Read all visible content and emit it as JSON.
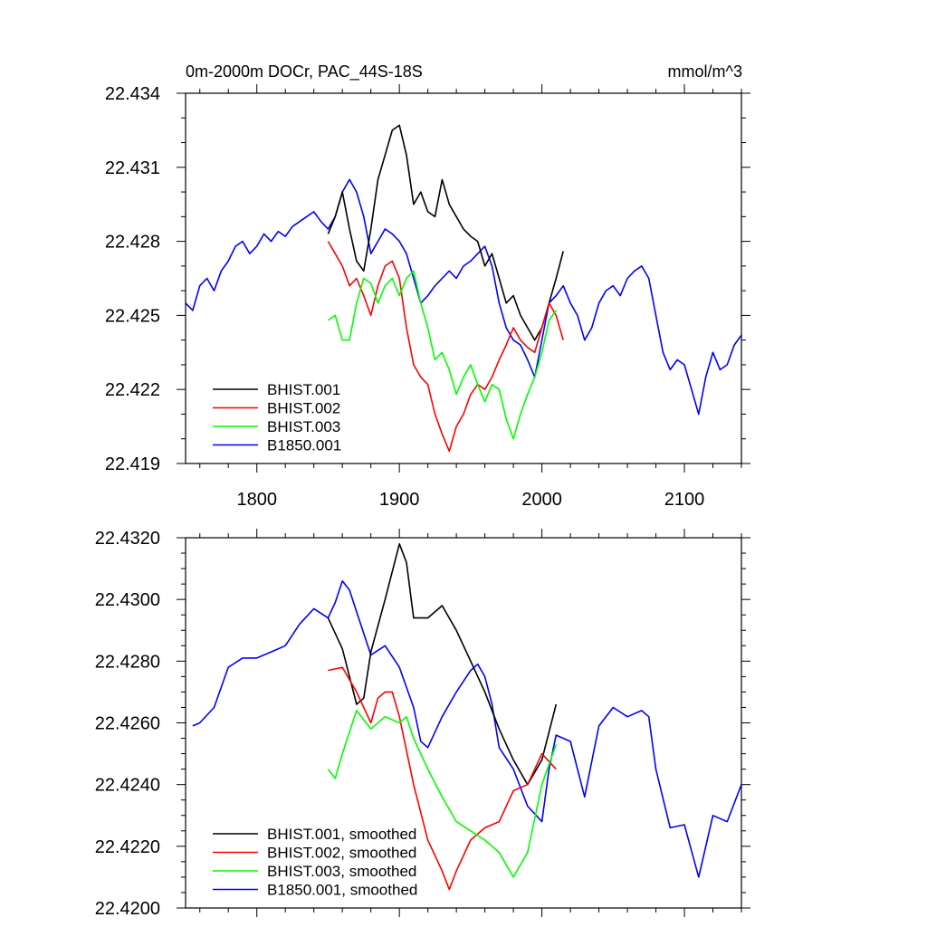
{
  "chart_data": [
    {
      "type": "line",
      "title": "0m-2000m DOCr, PAC_44S-18S",
      "units": "mmol/m^3",
      "xlim": [
        1750,
        2140
      ],
      "ylim": [
        22.419,
        22.434
      ],
      "x_ticks": [
        {
          "value": 1800,
          "label": "1800"
        },
        {
          "value": 1900,
          "label": "1900"
        },
        {
          "value": 2000,
          "label": "2000"
        },
        {
          "value": 2100,
          "label": "2100"
        }
      ],
      "y_ticks": [
        {
          "value": 22.419,
          "label": "22.419"
        },
        {
          "value": 22.422,
          "label": "22.422"
        },
        {
          "value": 22.425,
          "label": "22.425"
        },
        {
          "value": 22.428,
          "label": "22.428"
        },
        {
          "value": 22.431,
          "label": "22.431"
        },
        {
          "value": 22.434,
          "label": "22.434"
        }
      ],
      "legend_position": "bottom-left",
      "series": [
        {
          "name": "BHIST.001",
          "color": "#000000",
          "x": [
            1850,
            1855,
            1860,
            1865,
            1870,
            1875,
            1880,
            1885,
            1890,
            1895,
            1900,
            1905,
            1910,
            1915,
            1920,
            1925,
            1930,
            1935,
            1940,
            1945,
            1950,
            1955,
            1960,
            1965,
            1970,
            1975,
            1980,
            1985,
            1990,
            1995,
            2000,
            2005,
            2010,
            2015
          ],
          "y": [
            22.4283,
            22.429,
            22.43,
            22.4285,
            22.4272,
            22.4268,
            22.4285,
            22.4305,
            22.4315,
            22.4325,
            22.4327,
            22.4315,
            22.4295,
            22.43,
            22.4292,
            22.429,
            22.4305,
            22.4295,
            22.429,
            22.4285,
            22.4282,
            22.428,
            22.427,
            22.4275,
            22.4265,
            22.4255,
            22.4258,
            22.425,
            22.4245,
            22.424,
            22.4245,
            22.4255,
            22.4265,
            22.4276
          ]
        },
        {
          "name": "BHIST.002",
          "color": "#ff0000",
          "x": [
            1850,
            1855,
            1860,
            1865,
            1870,
            1875,
            1880,
            1885,
            1890,
            1895,
            1900,
            1905,
            1910,
            1915,
            1920,
            1925,
            1930,
            1935,
            1940,
            1945,
            1950,
            1955,
            1960,
            1965,
            1970,
            1975,
            1980,
            1985,
            1990,
            1995,
            2000,
            2005,
            2010,
            2015
          ],
          "y": [
            22.428,
            22.4275,
            22.427,
            22.4262,
            22.4265,
            22.4258,
            22.425,
            22.4262,
            22.427,
            22.4272,
            22.4265,
            22.4245,
            22.423,
            22.4225,
            22.4222,
            22.421,
            22.4202,
            22.4195,
            22.4205,
            22.421,
            22.4218,
            22.4222,
            22.422,
            22.4225,
            22.4232,
            22.4238,
            22.4245,
            22.424,
            22.4237,
            22.4235,
            22.4245,
            22.4255,
            22.425,
            22.424
          ]
        },
        {
          "name": "BHIST.003",
          "color": "#00ff00",
          "x": [
            1850,
            1855,
            1860,
            1865,
            1870,
            1875,
            1880,
            1885,
            1890,
            1895,
            1900,
            1905,
            1910,
            1915,
            1920,
            1925,
            1930,
            1935,
            1940,
            1945,
            1950,
            1955,
            1960,
            1965,
            1970,
            1975,
            1980,
            1985,
            1990,
            1995,
            2000,
            2005,
            2010
          ],
          "y": [
            22.4248,
            22.425,
            22.424,
            22.424,
            22.4255,
            22.4265,
            22.4263,
            22.4255,
            22.4262,
            22.4265,
            22.4258,
            22.4265,
            22.4268,
            22.4255,
            22.4245,
            22.4232,
            22.4235,
            22.4228,
            22.4218,
            22.4225,
            22.423,
            22.4222,
            22.4215,
            22.4222,
            22.422,
            22.4208,
            22.42,
            22.421,
            22.4218,
            22.4225,
            22.4235,
            22.4248,
            22.4252
          ]
        },
        {
          "name": "B1850.001",
          "color": "#0000ff",
          "x": [
            1750,
            1755,
            1760,
            1765,
            1770,
            1775,
            1780,
            1785,
            1790,
            1795,
            1800,
            1805,
            1810,
            1815,
            1820,
            1825,
            1830,
            1835,
            1840,
            1845,
            1850,
            1855,
            1860,
            1865,
            1870,
            1875,
            1880,
            1885,
            1890,
            1895,
            1900,
            1905,
            1910,
            1915,
            1920,
            1925,
            1930,
            1935,
            1940,
            1945,
            1950,
            1955,
            1960,
            1965,
            1970,
            1975,
            1980,
            1985,
            1990,
            1995,
            2000,
            2005,
            2010,
            2015,
            2020,
            2025,
            2030,
            2035,
            2040,
            2045,
            2050,
            2055,
            2060,
            2065,
            2070,
            2075,
            2080,
            2085,
            2090,
            2095,
            2100,
            2105,
            2110,
            2115,
            2120,
            2125,
            2130,
            2135,
            2140
          ],
          "y": [
            22.4255,
            22.4252,
            22.4262,
            22.4265,
            22.426,
            22.4268,
            22.4272,
            22.4278,
            22.428,
            22.4275,
            22.4278,
            22.4283,
            22.428,
            22.4284,
            22.4282,
            22.4286,
            22.4288,
            22.429,
            22.4292,
            22.4288,
            22.4285,
            22.429,
            22.43,
            22.4305,
            22.43,
            22.429,
            22.4275,
            22.428,
            22.4285,
            22.4283,
            22.428,
            22.4275,
            22.4265,
            22.4255,
            22.4258,
            22.4262,
            22.4265,
            22.4268,
            22.4265,
            22.427,
            22.4272,
            22.4275,
            22.4278,
            22.427,
            22.4255,
            22.4245,
            22.424,
            22.4238,
            22.4232,
            22.4225,
            22.424,
            22.4255,
            22.4258,
            22.4262,
            22.4255,
            22.425,
            22.424,
            22.4245,
            22.4255,
            22.426,
            22.4262,
            22.4258,
            22.4265,
            22.4268,
            22.427,
            22.4265,
            22.425,
            22.4235,
            22.4228,
            22.4232,
            22.423,
            22.422,
            22.421,
            22.4225,
            22.4235,
            22.4228,
            22.423,
            22.4238,
            22.4242
          ]
        }
      ]
    },
    {
      "type": "line",
      "xlim": [
        1750,
        2140
      ],
      "ylim": [
        22.42,
        22.432
      ],
      "x_ticks": [
        {
          "value": 1800,
          "label": ""
        },
        {
          "value": 1900,
          "label": ""
        },
        {
          "value": 2000,
          "label": ""
        },
        {
          "value": 2100,
          "label": ""
        }
      ],
      "y_ticks": [
        {
          "value": 22.42,
          "label": "22.4200"
        },
        {
          "value": 22.422,
          "label": "22.4220"
        },
        {
          "value": 22.424,
          "label": "22.4240"
        },
        {
          "value": 22.426,
          "label": "22.4260"
        },
        {
          "value": 22.428,
          "label": "22.4280"
        },
        {
          "value": 22.43,
          "label": "22.4300"
        },
        {
          "value": 22.432,
          "label": "22.4320"
        }
      ],
      "legend_position": "bottom-left",
      "series": [
        {
          "name": "BHIST.001, smoothed",
          "color": "#000000",
          "x": [
            1850,
            1860,
            1870,
            1875,
            1880,
            1890,
            1900,
            1905,
            1910,
            1920,
            1930,
            1940,
            1950,
            1960,
            1970,
            1980,
            1990,
            2000,
            2010
          ],
          "y": [
            22.4294,
            22.4284,
            22.4266,
            22.4268,
            22.4283,
            22.43,
            22.4318,
            22.4312,
            22.4294,
            22.4294,
            22.4298,
            22.429,
            22.428,
            22.427,
            22.4258,
            22.4248,
            22.424,
            22.4248,
            22.4266
          ]
        },
        {
          "name": "BHIST.002, smoothed",
          "color": "#ff0000",
          "x": [
            1850,
            1860,
            1870,
            1880,
            1885,
            1890,
            1895,
            1900,
            1910,
            1920,
            1930,
            1935,
            1940,
            1950,
            1960,
            1970,
            1980,
            1990,
            2000,
            2010
          ],
          "y": [
            22.4277,
            22.4278,
            22.427,
            22.426,
            22.4268,
            22.427,
            22.427,
            22.4262,
            22.424,
            22.4222,
            22.4212,
            22.4206,
            22.4212,
            22.4222,
            22.4226,
            22.4228,
            22.4238,
            22.424,
            22.425,
            22.4245
          ]
        },
        {
          "name": "BHIST.003, smoothed",
          "color": "#00ff00",
          "x": [
            1850,
            1855,
            1860,
            1870,
            1880,
            1890,
            1900,
            1905,
            1910,
            1920,
            1930,
            1940,
            1950,
            1960,
            1970,
            1980,
            1990,
            2000,
            2010
          ],
          "y": [
            22.4245,
            22.4242,
            22.425,
            22.4264,
            22.4258,
            22.4262,
            22.426,
            22.4262,
            22.4255,
            22.4245,
            22.4236,
            22.4228,
            22.4225,
            22.4222,
            22.4218,
            22.421,
            22.4218,
            22.424,
            22.4253
          ]
        },
        {
          "name": "B1850.001, smoothed",
          "color": "#0000ff",
          "x": [
            1755,
            1760,
            1770,
            1780,
            1790,
            1800,
            1810,
            1820,
            1830,
            1840,
            1850,
            1855,
            1860,
            1865,
            1870,
            1880,
            1890,
            1900,
            1910,
            1915,
            1920,
            1930,
            1940,
            1950,
            1955,
            1960,
            1965,
            1970,
            1980,
            1990,
            2000,
            2005,
            2010,
            2020,
            2030,
            2040,
            2050,
            2060,
            2070,
            2075,
            2080,
            2090,
            2100,
            2110,
            2120,
            2130,
            2140
          ],
          "y": [
            22.4259,
            22.426,
            22.4265,
            22.4278,
            22.4281,
            22.4281,
            22.4283,
            22.4285,
            22.4292,
            22.4297,
            22.4294,
            22.4299,
            22.4306,
            22.4303,
            22.4296,
            22.4282,
            22.4285,
            22.4278,
            22.4265,
            22.4254,
            22.4252,
            22.4262,
            22.427,
            22.4277,
            22.4279,
            22.4275,
            22.4266,
            22.4252,
            22.4245,
            22.4233,
            22.4228,
            22.4245,
            22.4256,
            22.4254,
            22.4236,
            22.4259,
            22.4265,
            22.4262,
            22.4264,
            22.4262,
            22.4245,
            22.4226,
            22.4227,
            22.421,
            22.423,
            22.4228,
            22.424
          ]
        }
      ]
    }
  ]
}
